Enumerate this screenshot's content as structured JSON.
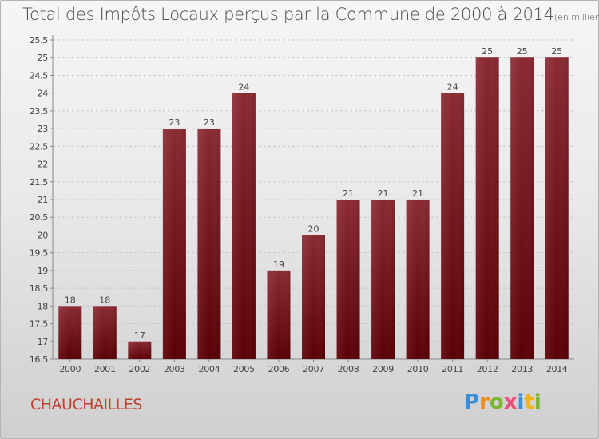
{
  "title": {
    "main": "Total des Impôts Locaux perçus par la Commune de 2000 à 2014",
    "unit": "(en milliers d'€)"
  },
  "commune_name": "CHAUCHAILLES",
  "logo": {
    "text": "Proxiti",
    "letters": [
      "P",
      "r",
      "o",
      "x",
      "i",
      "t",
      "i"
    ]
  },
  "colors": {
    "bar_top": "#8a2a33",
    "bar_bottom": "#5a0006",
    "commune_text": "#c0402f"
  },
  "chart_data": {
    "type": "bar",
    "title": "Total des Impôts Locaux perçus par la Commune de 2000 à 2014",
    "xlabel": "",
    "ylabel": "",
    "categories": [
      "2000",
      "2001",
      "2002",
      "2003",
      "2004",
      "2005",
      "2006",
      "2007",
      "2008",
      "2009",
      "2010",
      "2011",
      "2012",
      "2013",
      "2014"
    ],
    "values": [
      18,
      18,
      17,
      23,
      23,
      24,
      19,
      20,
      21,
      21,
      21,
      24,
      25,
      25,
      25
    ],
    "data_labels": [
      "18",
      "18",
      "17",
      "23",
      "23",
      "24",
      "19",
      "20",
      "21",
      "21",
      "21",
      "24",
      "25",
      "25",
      "25"
    ],
    "ylim": [
      16.5,
      25.5
    ],
    "yticks": [
      16.5,
      17,
      17.5,
      18,
      18.5,
      19,
      19.5,
      20,
      20.5,
      21,
      21.5,
      22,
      22.5,
      23,
      23.5,
      24,
      24.5,
      25,
      25.5
    ],
    "ytick_labels": [
      "16.5",
      "17",
      "17.5",
      "18",
      "18.5",
      "19",
      "19.5",
      "20",
      "20.5",
      "21",
      "21.5",
      "22",
      "22.5",
      "23",
      "23.5",
      "24",
      "24.5",
      "25",
      "25.5"
    ],
    "grid": true
  }
}
